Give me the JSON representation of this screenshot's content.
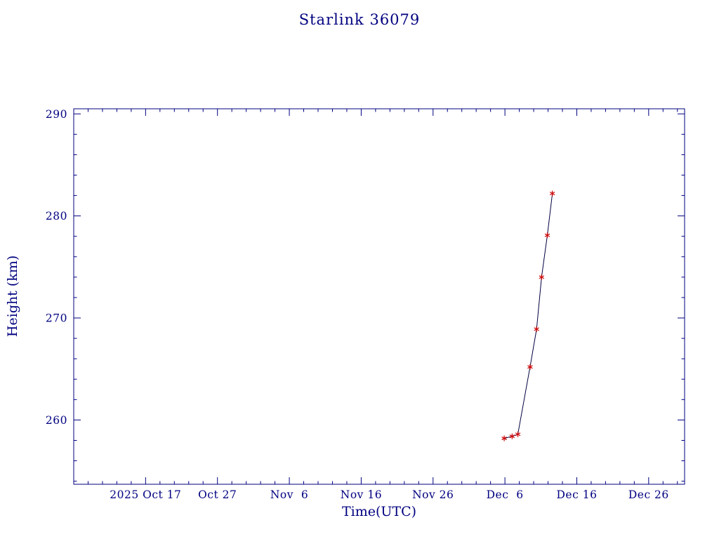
{
  "page": {
    "background": "#ffffff"
  },
  "title": "Starlink 36079",
  "chart_data": {
    "type": "line",
    "title": "Starlink 36079",
    "xlabel": "Time(UTC)",
    "ylabel": "Height (km)",
    "grid": false,
    "legend": false,
    "axis_color": "#000080",
    "line_color": "#000040",
    "marker": "asterisk",
    "marker_color": "#cc0000",
    "x_axis": {
      "unit": "days since 2025 Oct 17 (UTC)",
      "range": [
        -10,
        75
      ],
      "major_tick_days": [
        0,
        10,
        20,
        30,
        40,
        50,
        60,
        70
      ],
      "tick_labels": [
        "2025 Oct 17",
        "Oct 27",
        "Nov  6",
        "Nov 16",
        "Nov 26",
        "Dec  6",
        "Dec 16",
        "Dec 26"
      ],
      "minor_tick_step": 2
    },
    "y_axis": {
      "unit": "km",
      "range": [
        253.7,
        290.5
      ],
      "major_ticks": [
        260,
        270,
        280,
        290
      ],
      "minor_tick_step": 2
    },
    "series": [
      {
        "name": "height",
        "points_day_height": [
          [
            49.9,
            258.2
          ],
          [
            51.0,
            258.4
          ],
          [
            51.8,
            258.6
          ],
          [
            53.5,
            265.2
          ],
          [
            54.4,
            268.9
          ],
          [
            55.1,
            274.0
          ],
          [
            55.9,
            278.1
          ],
          [
            56.6,
            282.2
          ]
        ]
      }
    ]
  }
}
